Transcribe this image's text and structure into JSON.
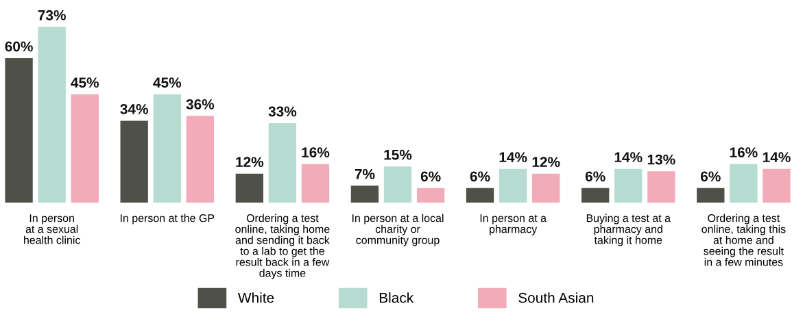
{
  "chart_data": {
    "type": "bar",
    "categories": [
      "In person\nat a sexual\nhealth clinic",
      "In person at the GP",
      "Ordering a test\nonline, taking home\nand sending it back\nto a lab to get the\nresult back in a few\ndays time",
      "In person at a local\ncharity or\ncommunity group",
      "In person at a\npharmacy",
      "Buying a test at a\npharmacy and\ntaking it home",
      "Ordering a test\nonline, taking this\nat home and\nseeing the result\nin a few minutes"
    ],
    "series": [
      {
        "name": "White",
        "color": "#4f5048",
        "values": [
          60,
          34,
          12,
          7,
          6,
          6,
          6
        ],
        "value_labels": [
          "60%",
          "34%",
          "12%",
          "7%",
          "6%",
          "6%",
          "6%"
        ]
      },
      {
        "name": "Black",
        "color": "#b6dcd1",
        "values": [
          73,
          45,
          33,
          15,
          14,
          14,
          16
        ],
        "value_labels": [
          "73%",
          "45%",
          "33%",
          "15%",
          "14%",
          "14%",
          "16%"
        ]
      },
      {
        "name": "South Asian",
        "color": "#f2abb8",
        "values": [
          45,
          36,
          16,
          6,
          12,
          13,
          14
        ],
        "value_labels": [
          "45%",
          "36%",
          "16%",
          "6%",
          "12%",
          "13%",
          "14%"
        ]
      }
    ],
    "legend": "bottom",
    "grid": false
  }
}
